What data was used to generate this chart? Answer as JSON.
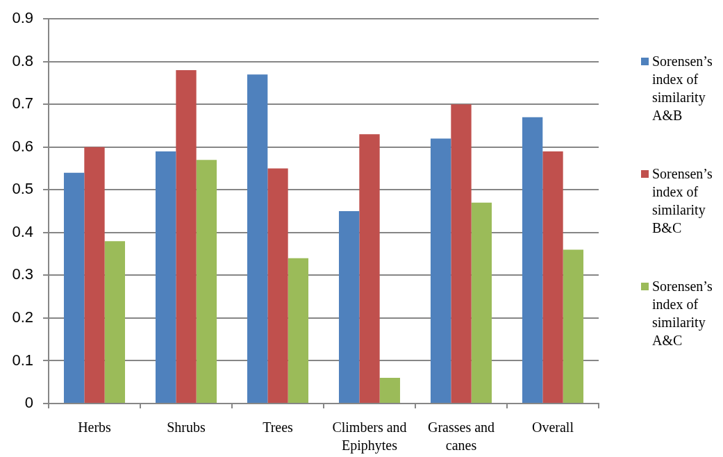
{
  "chart_data": {
    "type": "bar",
    "categories": [
      "Herbs",
      "Shrubs",
      "Trees",
      "Climbers and Epiphytes",
      "Grasses and canes",
      "Overall"
    ],
    "series": [
      {
        "name": "Sorensen’s index of similarity A&B",
        "color": "#4f81bd",
        "values": [
          0.54,
          0.59,
          0.77,
          0.45,
          0.62,
          0.67
        ]
      },
      {
        "name": "Sorensen’s index of similarity B&C",
        "color": "#c0504d",
        "values": [
          0.6,
          0.78,
          0.55,
          0.63,
          0.7,
          0.59
        ]
      },
      {
        "name": "Sorensen’s index of similarity A&C",
        "color": "#9bbb59",
        "values": [
          0.38,
          0.57,
          0.34,
          0.06,
          0.47,
          0.36
        ]
      }
    ],
    "ylim": [
      0,
      0.9
    ],
    "yticks": [
      0,
      0.1,
      0.2,
      0.3,
      0.4,
      0.5,
      0.6,
      0.7,
      0.8,
      0.9
    ],
    "grid": "y",
    "legend": "right"
  }
}
